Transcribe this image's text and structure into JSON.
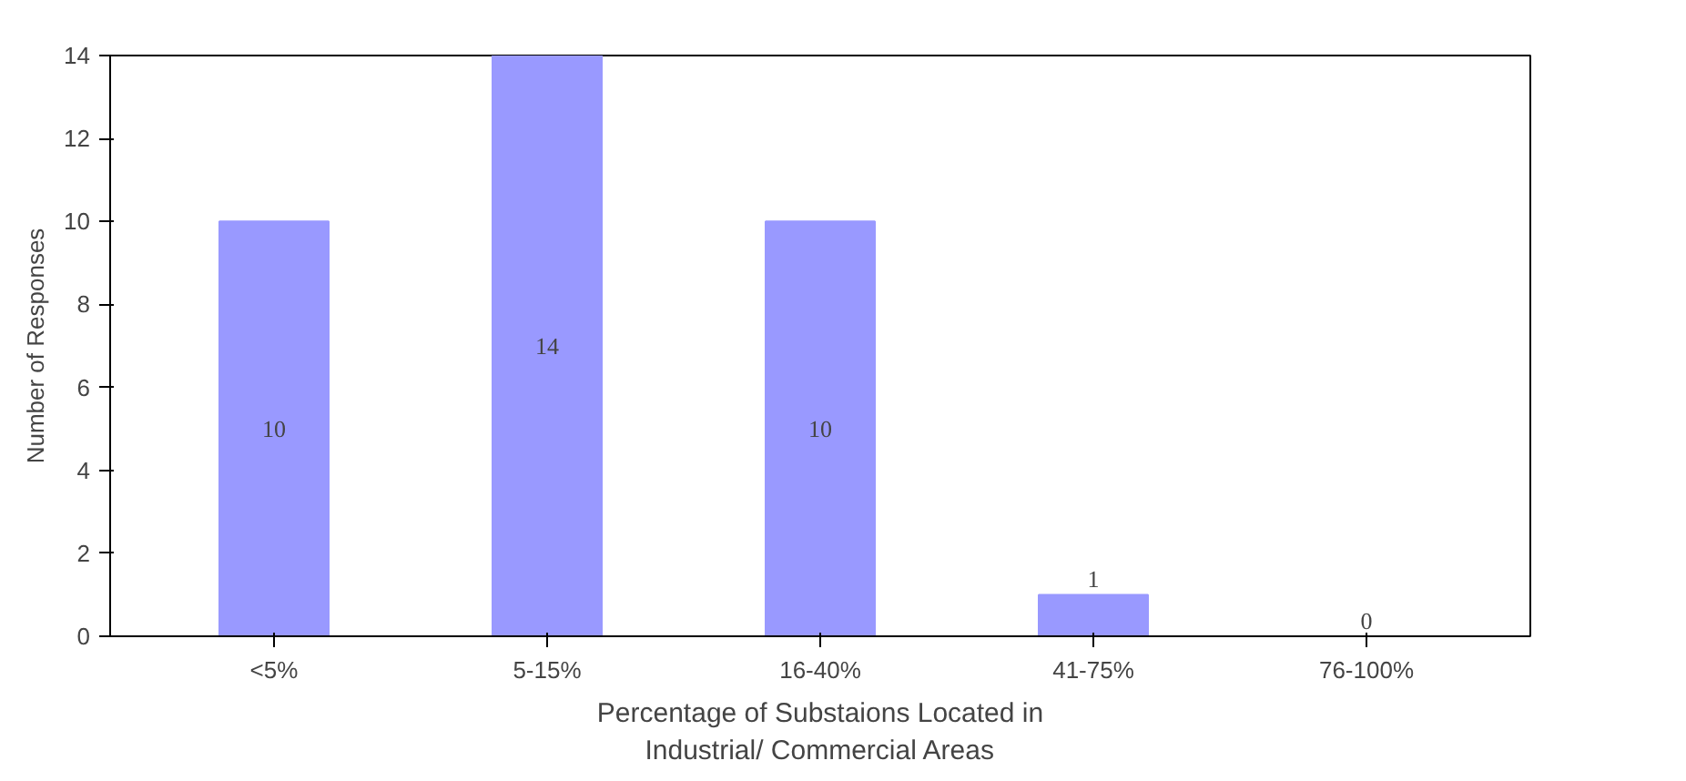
{
  "chart_data": {
    "type": "bar",
    "xlabel": "Percentage of Substaions Located in\nIndustrial/ Commercial Areas",
    "ylabel": "Number of Responses",
    "categories": [
      "<5%",
      "5-15%",
      "16-40%",
      "41-75%",
      "76-100%"
    ],
    "values": [
      10,
      14,
      10,
      1,
      0
    ],
    "color": "#9999ff",
    "ylim": [
      0,
      14
    ],
    "yticks": [
      0,
      2,
      4,
      6,
      8,
      10,
      12,
      14
    ],
    "grid": false,
    "data_labels": true
  }
}
